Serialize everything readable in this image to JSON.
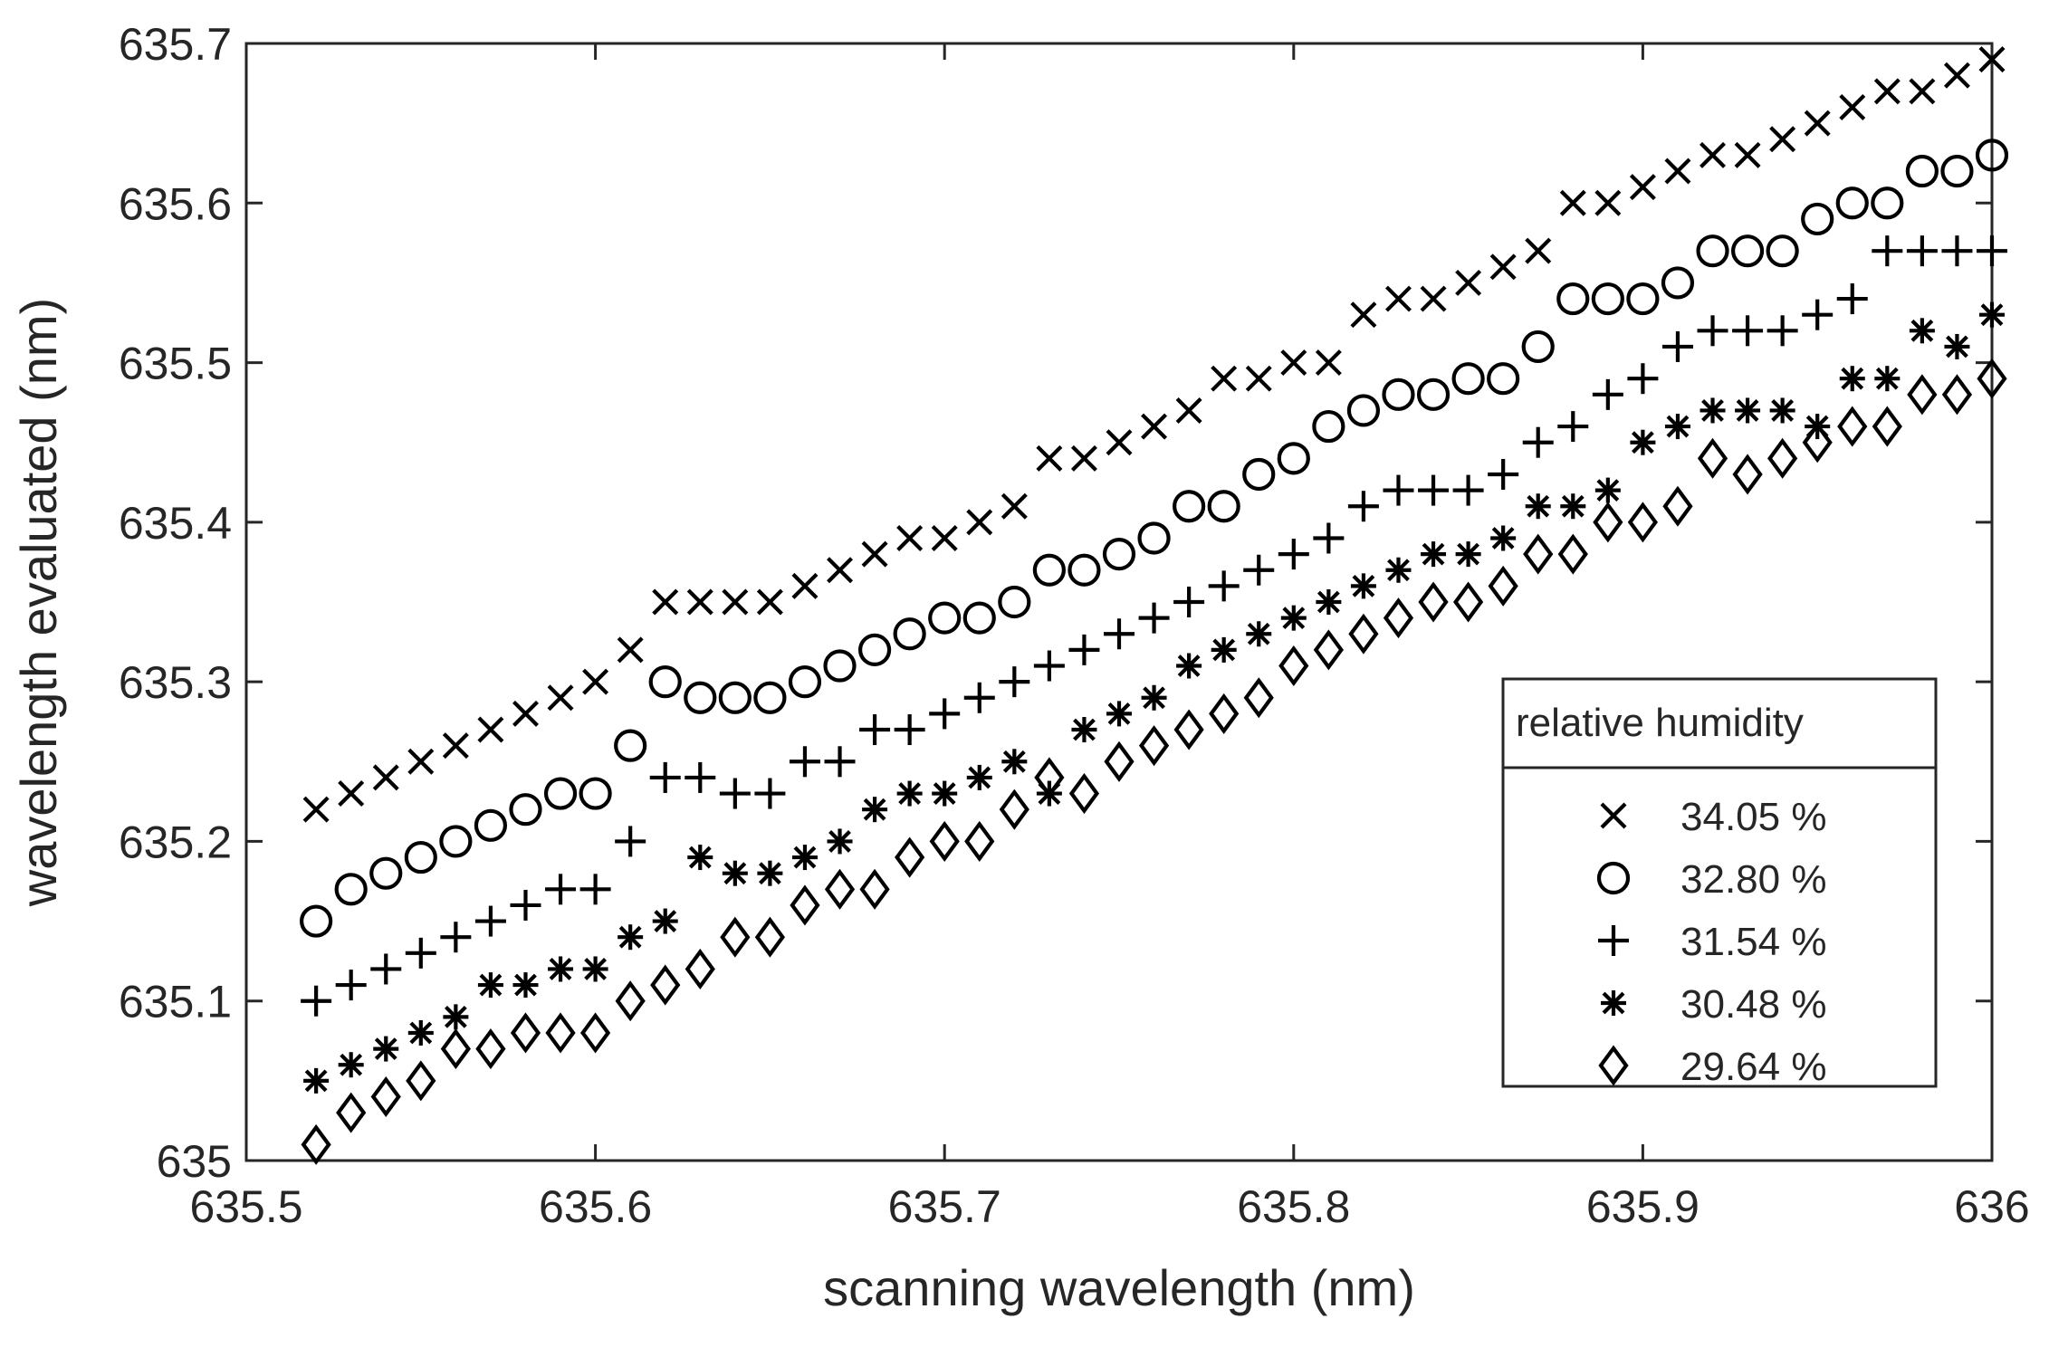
{
  "chart_data": {
    "type": "scatter",
    "title": "",
    "xlabel": "scanning wavelength (nm)",
    "ylabel": "wavelength evaluated (nm)",
    "xlim": [
      635.5,
      636
    ],
    "ylim": [
      635,
      635.7
    ],
    "xticks": [
      "635.5",
      "635.6",
      "635.7",
      "635.8",
      "635.9",
      "636"
    ],
    "yticks": [
      "635",
      "635.1",
      "635.2",
      "635.3",
      "635.4",
      "635.5",
      "635.6",
      "635.7"
    ],
    "x": [
      635.52,
      635.53,
      635.54,
      635.55,
      635.56,
      635.57,
      635.58,
      635.59,
      635.6,
      635.61,
      635.62,
      635.63,
      635.64,
      635.65,
      635.66,
      635.67,
      635.68,
      635.69,
      635.7,
      635.71,
      635.72,
      635.73,
      635.74,
      635.75,
      635.76,
      635.77,
      635.78,
      635.79,
      635.8,
      635.81,
      635.82,
      635.83,
      635.84,
      635.85,
      635.86,
      635.87,
      635.88,
      635.89,
      635.9,
      635.91,
      635.92,
      635.93,
      635.94,
      635.95,
      635.96,
      635.97,
      635.98,
      635.99,
      636.0
    ],
    "legend": {
      "title": "relative humidity",
      "location": "bottom-right"
    },
    "series": [
      {
        "name": "34.05 %",
        "marker": "x",
        "values": [
          635.22,
          635.23,
          635.24,
          635.25,
          635.26,
          635.27,
          635.28,
          635.29,
          635.3,
          635.32,
          635.35,
          635.35,
          635.35,
          635.35,
          635.36,
          635.37,
          635.38,
          635.39,
          635.39,
          635.4,
          635.41,
          635.44,
          635.44,
          635.45,
          635.46,
          635.47,
          635.49,
          635.49,
          635.5,
          635.5,
          635.53,
          635.54,
          635.54,
          635.55,
          635.56,
          635.57,
          635.6,
          635.6,
          635.61,
          635.62,
          635.63,
          635.63,
          635.64,
          635.65,
          635.66,
          635.67,
          635.67,
          635.68,
          635.69
        ]
      },
      {
        "name": "32.80 %",
        "marker": "o",
        "values": [
          635.15,
          635.17,
          635.18,
          635.19,
          635.2,
          635.21,
          635.22,
          635.23,
          635.23,
          635.26,
          635.3,
          635.29,
          635.29,
          635.29,
          635.3,
          635.31,
          635.32,
          635.33,
          635.34,
          635.34,
          635.35,
          635.37,
          635.37,
          635.38,
          635.39,
          635.41,
          635.41,
          635.43,
          635.44,
          635.46,
          635.47,
          635.48,
          635.48,
          635.49,
          635.49,
          635.51,
          635.54,
          635.54,
          635.54,
          635.55,
          635.57,
          635.57,
          635.57,
          635.59,
          635.6,
          635.6,
          635.62,
          635.62,
          635.63
        ]
      },
      {
        "name": "31.54 %",
        "marker": "+",
        "values": [
          635.1,
          635.11,
          635.12,
          635.13,
          635.14,
          635.15,
          635.16,
          635.17,
          635.17,
          635.2,
          635.24,
          635.24,
          635.23,
          635.23,
          635.25,
          635.25,
          635.27,
          635.27,
          635.28,
          635.29,
          635.3,
          635.31,
          635.32,
          635.33,
          635.34,
          635.35,
          635.36,
          635.37,
          635.38,
          635.39,
          635.41,
          635.42,
          635.42,
          635.42,
          635.43,
          635.45,
          635.46,
          635.48,
          635.49,
          635.51,
          635.52,
          635.52,
          635.52,
          635.53,
          635.54,
          635.57,
          635.57,
          635.57,
          635.57
        ]
      },
      {
        "name": "30.48 %",
        "marker": "*",
        "values": [
          635.05,
          635.06,
          635.07,
          635.08,
          635.09,
          635.11,
          635.11,
          635.12,
          635.12,
          635.14,
          635.15,
          635.19,
          635.18,
          635.18,
          635.19,
          635.2,
          635.22,
          635.23,
          635.23,
          635.24,
          635.25,
          635.23,
          635.27,
          635.28,
          635.29,
          635.31,
          635.32,
          635.33,
          635.34,
          635.35,
          635.36,
          635.37,
          635.38,
          635.38,
          635.39,
          635.41,
          635.41,
          635.42,
          635.45,
          635.46,
          635.47,
          635.47,
          635.47,
          635.46,
          635.49,
          635.49,
          635.52,
          635.51,
          635.53
        ]
      },
      {
        "name": "29.64 %",
        "marker": "d",
        "values": [
          635.01,
          635.03,
          635.04,
          635.05,
          635.07,
          635.07,
          635.08,
          635.08,
          635.08,
          635.1,
          635.11,
          635.12,
          635.14,
          635.14,
          635.16,
          635.17,
          635.17,
          635.19,
          635.2,
          635.2,
          635.22,
          635.24,
          635.23,
          635.25,
          635.26,
          635.27,
          635.28,
          635.29,
          635.31,
          635.32,
          635.33,
          635.34,
          635.35,
          635.35,
          635.36,
          635.38,
          635.38,
          635.4,
          635.4,
          635.41,
          635.44,
          635.43,
          635.44,
          635.45,
          635.46,
          635.46,
          635.48,
          635.48,
          635.49
        ]
      }
    ]
  },
  "colors": {
    "axis": "#262626",
    "marker": "#000000",
    "background": "#ffffff"
  }
}
